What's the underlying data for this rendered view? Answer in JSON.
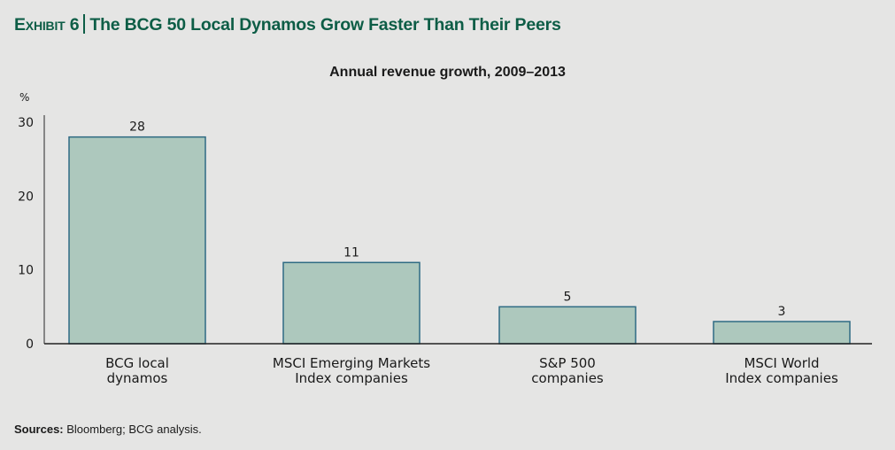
{
  "header": {
    "exhibit_label": "Exhibit 6",
    "title": "The BCG 50 Local Dynamos Grow Faster Than Their Peers",
    "title_color": "#0d5d46"
  },
  "footer": {
    "sources_label": "Sources:",
    "sources_text": " Bloomberg; BCG analysis."
  },
  "chart_data": {
    "type": "bar",
    "title": "Annual revenue growth, 2009–2013",
    "xlabel": "",
    "ylabel": "%",
    "ylim": [
      0,
      30
    ],
    "yticks": [
      0,
      10,
      20,
      30
    ],
    "grid": false,
    "legend": "none",
    "categories": [
      [
        "BCG local",
        "dynamos"
      ],
      [
        "MSCI Emerging Markets",
        "Index companies"
      ],
      [
        "S&P 500",
        "companies"
      ],
      [
        "MSCI World",
        "Index companies"
      ]
    ],
    "values": [
      28,
      11,
      5,
      3
    ],
    "data_labels": [
      "28",
      "11",
      "5",
      "3"
    ],
    "bar_fill": "#adc8bd",
    "bar_stroke": "#2f6b83"
  }
}
